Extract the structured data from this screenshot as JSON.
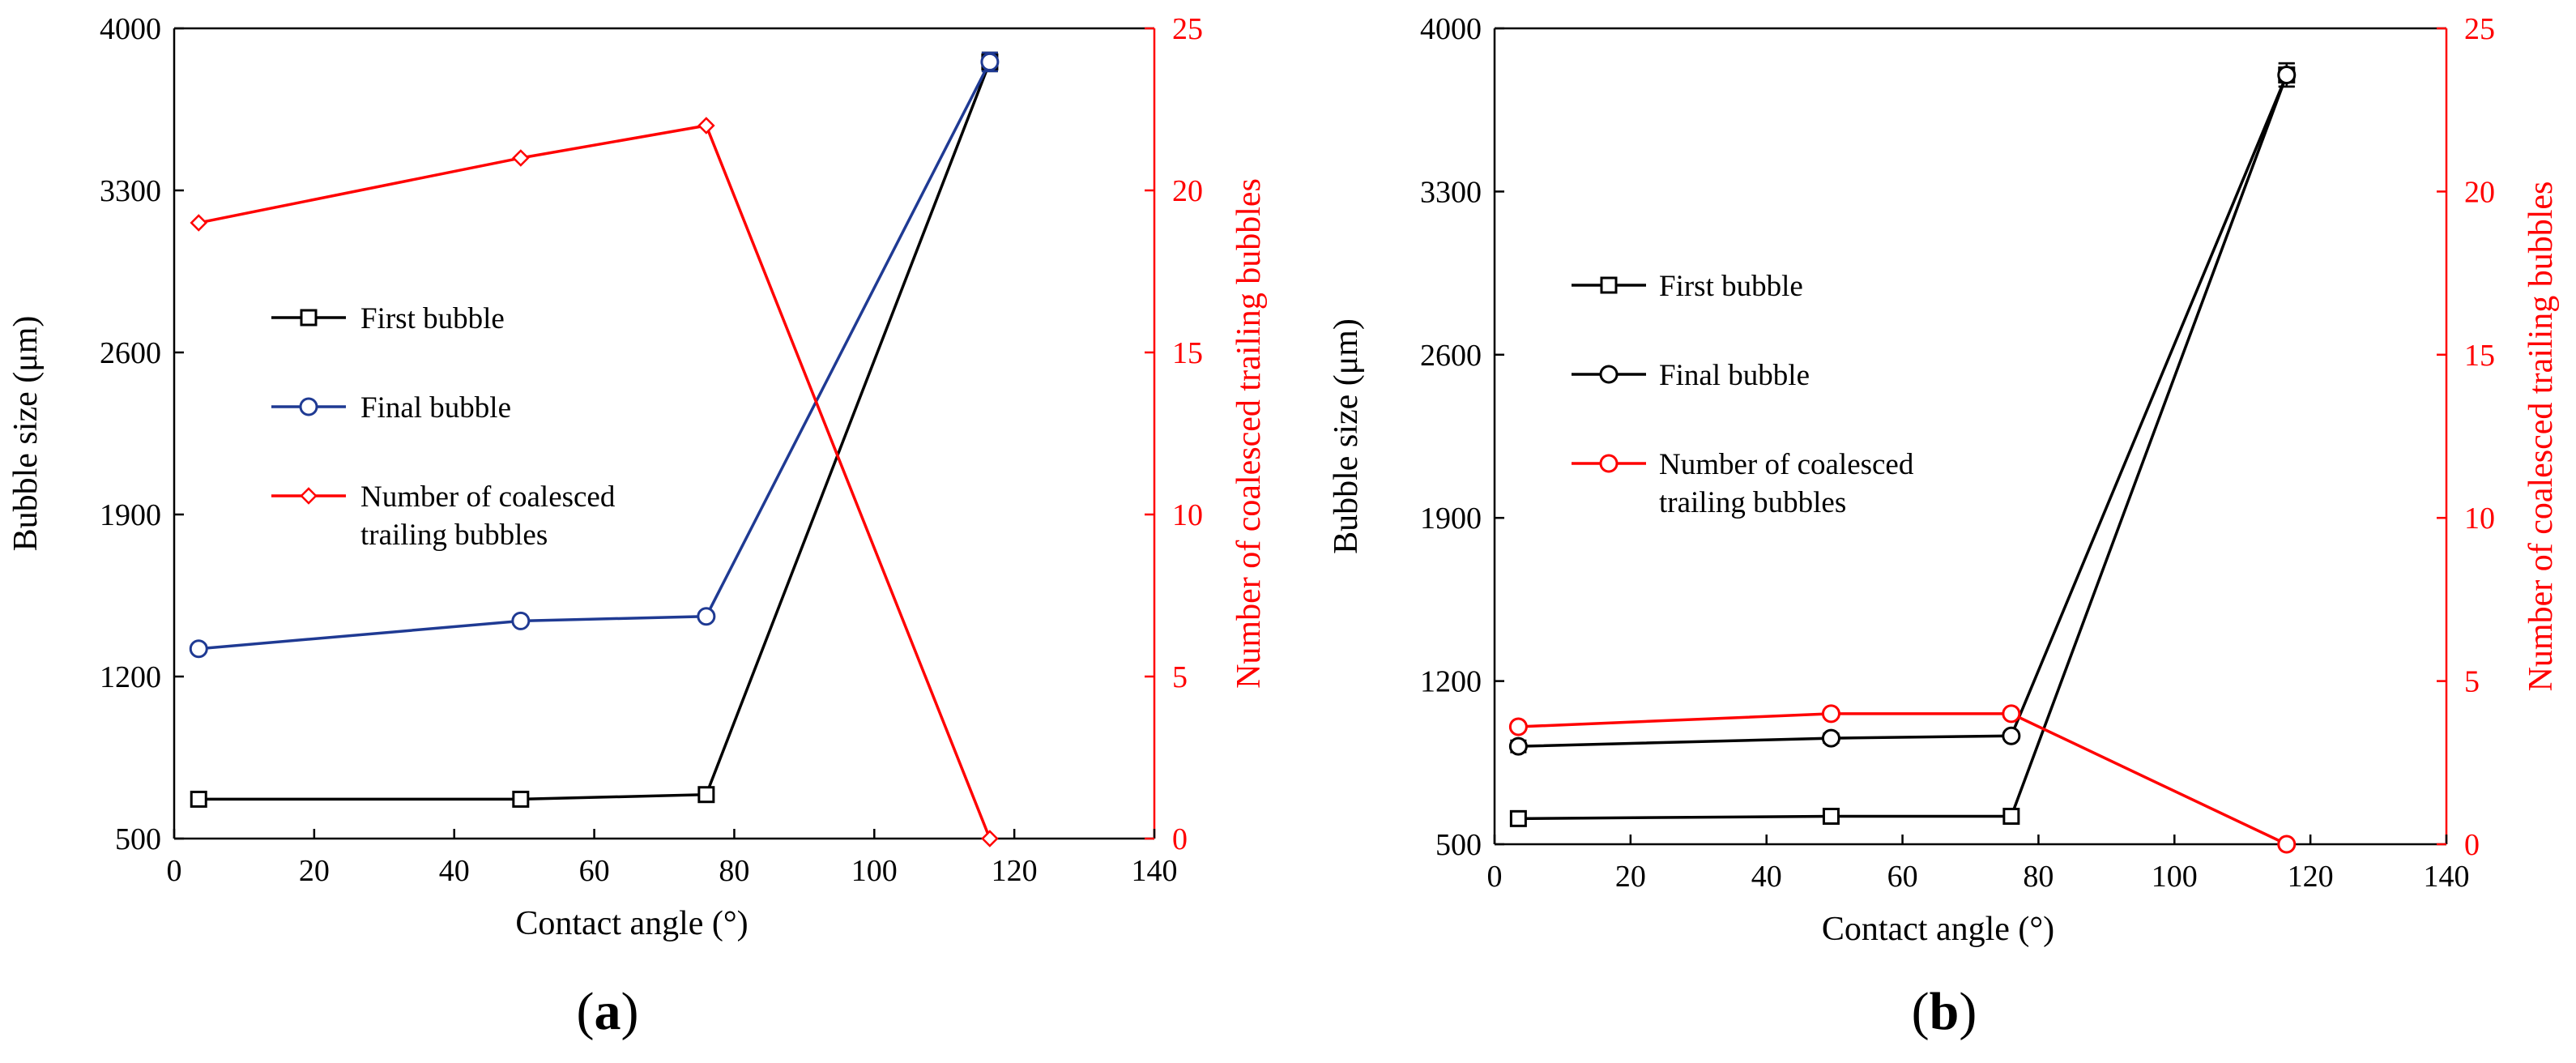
{
  "colors": {
    "black": "#000000",
    "blue": "#1f3a93",
    "red": "#ff0000"
  },
  "chart_data": [
    {
      "type": "line",
      "panel_label": "a",
      "xlabel": "Contact angle (°)",
      "ylabel": "Bubble size (μm)",
      "y2label": "Number of coalesced trailing bubbles",
      "xlim": [
        0,
        140
      ],
      "ylim": [
        500,
        4000
      ],
      "y2lim": [
        0,
        25
      ],
      "xticks": [
        "0",
        "20",
        "40",
        "60",
        "80",
        "100",
        "120",
        "140"
      ],
      "yticks": [
        "500",
        "1200",
        "1900",
        "2600",
        "3300",
        "4000"
      ],
      "y2ticks": [
        "0",
        "5",
        "10",
        "15",
        "20",
        "25"
      ],
      "series": [
        {
          "name": "First bubble",
          "axis": "left",
          "marker": "square",
          "color": "#000000",
          "x": [
            3.5,
            49.5,
            76,
            116.5
          ],
          "y": [
            670,
            670,
            690,
            3855
          ],
          "err": [
            0,
            0,
            0,
            40
          ]
        },
        {
          "name": "Final bubble",
          "axis": "left",
          "marker": "circle",
          "color": "#1f3a93",
          "x": [
            3.5,
            49.5,
            76,
            116.5
          ],
          "y": [
            1320,
            1440,
            1460,
            3855
          ],
          "err": [
            0,
            0,
            0,
            40
          ]
        },
        {
          "name": "Number of coalesced",
          "name_line2": "trailing bubbles",
          "axis": "right",
          "marker": "diamond",
          "color": "#ff0000",
          "x": [
            3.5,
            49.5,
            76,
            116.5
          ],
          "y": [
            19,
            21,
            22,
            0
          ],
          "err": [
            0,
            0,
            0,
            0
          ]
        }
      ],
      "legend_position": "middle-left"
    },
    {
      "type": "line",
      "panel_label": "b",
      "xlabel": "Contact angle (°)",
      "ylabel": "Bubble size (μm)",
      "y2label": "Number of coalesced trailing bubbles",
      "xlim": [
        0,
        140
      ],
      "ylim": [
        500,
        4000
      ],
      "y2lim": [
        0,
        25
      ],
      "xticks": [
        "0",
        "20",
        "40",
        "60",
        "80",
        "100",
        "120",
        "140"
      ],
      "yticks": [
        "500",
        "1200",
        "1900",
        "2600",
        "3300",
        "4000"
      ],
      "y2ticks": [
        "0",
        "5",
        "10",
        "15",
        "20",
        "25"
      ],
      "series": [
        {
          "name": "First bubble",
          "axis": "left",
          "marker": "square",
          "color": "#000000",
          "x": [
            3.5,
            49.5,
            76,
            116.5
          ],
          "y": [
            610,
            620,
            620,
            3800
          ],
          "err": [
            15,
            15,
            15,
            50
          ]
        },
        {
          "name": "Final bubble",
          "axis": "left",
          "marker": "circle",
          "color": "#000000",
          "x": [
            3.5,
            49.5,
            76,
            116.5
          ],
          "y": [
            920,
            955,
            965,
            3800
          ],
          "err": [
            25,
            20,
            15,
            50
          ]
        },
        {
          "name": "Number of coalesced",
          "name_line2": "trailing bubbles",
          "axis": "right",
          "marker": "circle",
          "color": "#ff0000",
          "x": [
            3.5,
            49.5,
            76,
            116.5
          ],
          "y": [
            3.6,
            4.0,
            4.0,
            0
          ],
          "err": [
            0,
            0,
            0,
            0
          ]
        }
      ],
      "legend_position": "middle-left"
    }
  ]
}
